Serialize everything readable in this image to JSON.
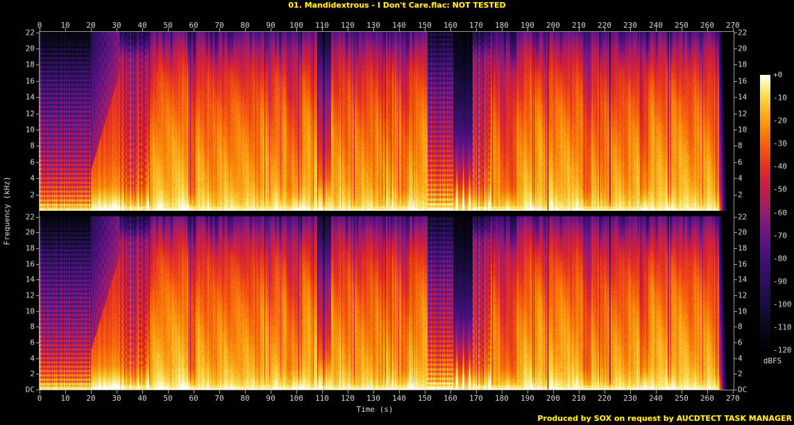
{
  "chart_data": {
    "type": "heatmap",
    "subtype": "audio-spectrogram",
    "title": "01. Mandidextrous - I Don't Care.flac: NOT TESTED",
    "credit": "Produced by SOX on request by AUCDTECT TASK MANAGER",
    "channels": 2,
    "duration_s": 270.3,
    "audio_end_s": 264.5,
    "x_axis": {
      "label": "Time (s)",
      "unit": "s",
      "min": 0,
      "max": 270,
      "tick_step": 10,
      "ticks": [
        0,
        10,
        20,
        30,
        40,
        50,
        60,
        70,
        80,
        90,
        100,
        110,
        120,
        130,
        140,
        150,
        160,
        170,
        180,
        190,
        200,
        210,
        220,
        230,
        240,
        250,
        260,
        270
      ]
    },
    "y_axis": {
      "label": "Frequency (kHz)",
      "unit": "kHz",
      "min": 0,
      "max": 22.05,
      "panel1_ticks": [
        "22",
        "20",
        "18",
        "16",
        "14",
        "12",
        "10",
        "8",
        "6",
        "4",
        "2"
      ],
      "panel2_ticks": [
        "22",
        "20",
        "18",
        "16",
        "14",
        "12",
        "10",
        "8",
        "6",
        "4",
        "2",
        "DC"
      ]
    },
    "colorbar": {
      "label": "dBFS",
      "min": -120,
      "max": 0,
      "ticks": [
        "+0",
        "-10",
        "-20",
        "-30",
        "-40",
        "-50",
        "-60",
        "-70",
        "-80",
        "-90",
        "-100",
        "-110",
        "-120"
      ],
      "palette": [
        [
          0,
          "#000000"
        ],
        [
          0.042,
          "#060412"
        ],
        [
          0.083,
          "#0c0722"
        ],
        [
          0.125,
          "#120a31"
        ],
        [
          0.167,
          "#1a0c41"
        ],
        [
          0.208,
          "#230d50"
        ],
        [
          0.25,
          "#2d0e5e"
        ],
        [
          0.292,
          "#390f6b"
        ],
        [
          0.333,
          "#461077"
        ],
        [
          0.375,
          "#551280"
        ],
        [
          0.417,
          "#681583"
        ],
        [
          0.458,
          "#7d187d"
        ],
        [
          0.5,
          "#951b70"
        ],
        [
          0.542,
          "#ac1c5e"
        ],
        [
          0.583,
          "#c11d4b"
        ],
        [
          0.625,
          "#d42337"
        ],
        [
          0.667,
          "#e33123"
        ],
        [
          0.708,
          "#ef4815"
        ],
        [
          0.75,
          "#f6620c"
        ],
        [
          0.792,
          "#fa7f0a"
        ],
        [
          0.833,
          "#fc9c10"
        ],
        [
          0.875,
          "#fdb927"
        ],
        [
          0.917,
          "#fdd64b"
        ],
        [
          0.958,
          "#feef8d"
        ],
        [
          1,
          "#ffffff"
        ]
      ]
    },
    "model": {
      "profiles": {
        "full": [
          [
            0,
            -3
          ],
          [
            0.4,
            -7
          ],
          [
            1.5,
            -13
          ],
          [
            3,
            -18
          ],
          [
            6,
            -22
          ],
          [
            10,
            -27
          ],
          [
            13,
            -32
          ],
          [
            16,
            -39
          ],
          [
            18,
            -46
          ],
          [
            19.5,
            -53
          ],
          [
            20.6,
            -61
          ],
          [
            21.5,
            -69
          ],
          [
            22.05,
            -73
          ]
        ],
        "intro": [
          [
            0,
            -5
          ],
          [
            0.4,
            -10
          ],
          [
            1.5,
            -22
          ],
          [
            3,
            -34
          ],
          [
            5,
            -45
          ],
          [
            8,
            -55
          ],
          [
            11,
            -63
          ],
          [
            14,
            -72
          ],
          [
            17,
            -83
          ],
          [
            19,
            -94
          ],
          [
            20.5,
            -102
          ],
          [
            22.05,
            -112
          ]
        ],
        "predrop": [
          [
            0,
            -4
          ],
          [
            0.5,
            -9
          ],
          [
            1.5,
            -18
          ],
          [
            3,
            -30
          ],
          [
            6,
            -38
          ],
          [
            10,
            -44
          ],
          [
            14,
            -49
          ],
          [
            17,
            -54
          ],
          [
            19,
            -60
          ],
          [
            20,
            -72
          ],
          [
            21,
            -85
          ],
          [
            22.05,
            -95
          ]
        ],
        "break": [
          [
            0,
            -4
          ],
          [
            0.5,
            -9
          ],
          [
            2,
            -20
          ],
          [
            4,
            -34
          ],
          [
            7,
            -45
          ],
          [
            10,
            -54
          ],
          [
            13,
            -63
          ],
          [
            16,
            -74
          ],
          [
            18,
            -84
          ],
          [
            20,
            -96
          ],
          [
            22.05,
            -108
          ]
        ],
        "checker": [
          [
            0,
            -4
          ],
          [
            0.5,
            -9
          ],
          [
            2,
            -18
          ],
          [
            4,
            -30
          ],
          [
            7,
            -42
          ],
          [
            10,
            -52
          ],
          [
            13,
            -60
          ],
          [
            16,
            -70
          ],
          [
            18,
            -79
          ],
          [
            20,
            -90
          ],
          [
            22.05,
            -100
          ]
        ],
        "quiet": [
          [
            0,
            -7
          ],
          [
            0.5,
            -14
          ],
          [
            2,
            -32
          ],
          [
            4,
            -50
          ],
          [
            7,
            -68
          ],
          [
            10,
            -82
          ],
          [
            13,
            -93
          ],
          [
            16,
            -103
          ],
          [
            19,
            -111
          ],
          [
            22.05,
            -117
          ]
        ]
      },
      "segments": [
        {
          "t0": 0,
          "t1": 20,
          "type": "intro"
        },
        {
          "t0": 20,
          "t1": 31,
          "type": "riser"
        },
        {
          "t0": 31,
          "t1": 42.5,
          "type": "predrop"
        },
        {
          "t0": 42.5,
          "t1": 108,
          "type": "full"
        },
        {
          "t0": 108,
          "t1": 113.5,
          "type": "break"
        },
        {
          "t0": 113.5,
          "t1": 151,
          "type": "full"
        },
        {
          "t0": 151,
          "t1": 161,
          "type": "checker"
        },
        {
          "t0": 161,
          "t1": 168.5,
          "type": "quiet",
          "spikes": [
            162.4,
            164.9,
            167.4
          ]
        },
        {
          "t0": 168.5,
          "t1": 175.5,
          "type": "predrop"
        },
        {
          "t0": 175.5,
          "t1": 197.6,
          "type": "full"
        },
        {
          "t0": 197.6,
          "t1": 198.1,
          "type": "silence"
        },
        {
          "t0": 198.1,
          "t1": 264.5,
          "type": "full"
        },
        {
          "t0": 264.5,
          "t1": 270.3,
          "type": "fade"
        }
      ],
      "events": [
        {
          "t": 222,
          "w": 0.5,
          "drop": 35
        }
      ]
    }
  },
  "colors": {
    "background": "#000000",
    "title_text": "#ffff00",
    "credit_text": "#ffff00",
    "axis_text": "#d6d6d6",
    "axis_line": "#9a9a9a"
  }
}
